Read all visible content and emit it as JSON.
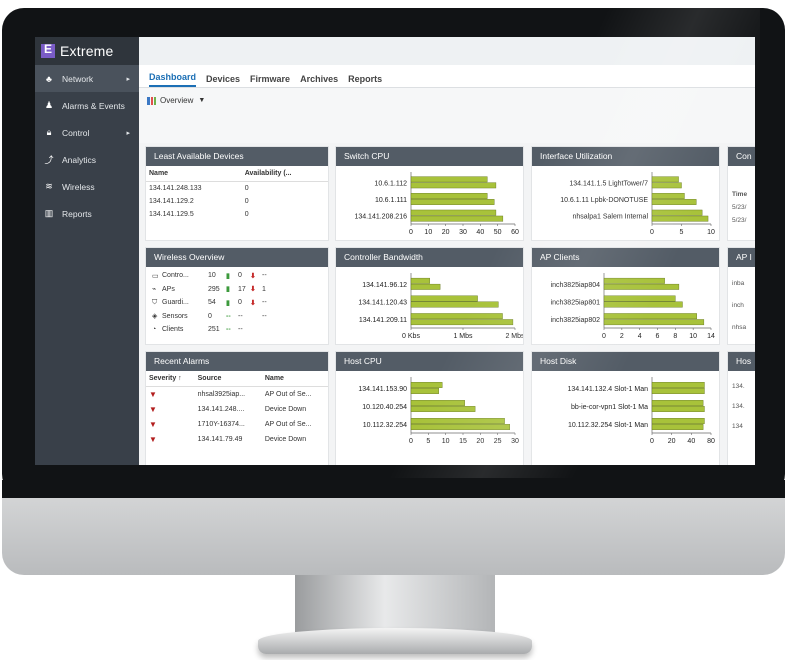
{
  "app": {
    "logo_text": "Extreme",
    "brand_color": "#7a5cc7"
  },
  "sidebar": {
    "items": [
      {
        "label": "Network",
        "icon": "network-icon",
        "glyph": "♣",
        "arrow": "▸"
      },
      {
        "label": "Alarms & Events",
        "icon": "bell-icon",
        "glyph": "♟",
        "arrow": ""
      },
      {
        "label": "Control",
        "icon": "lock-icon",
        "glyph": "🔒︎",
        "arrow": "▸"
      },
      {
        "label": "Analytics",
        "icon": "analytics-icon",
        "glyph": "⤴",
        "arrow": ""
      },
      {
        "label": "Wireless",
        "icon": "wifi-icon",
        "glyph": "≋",
        "arrow": ""
      },
      {
        "label": "Reports",
        "icon": "reports-icon",
        "glyph": "▥",
        "arrow": ""
      }
    ]
  },
  "tabs": [
    "Dashboard",
    "Devices",
    "Firmware",
    "Archives",
    "Reports"
  ],
  "overview_label": "Overview",
  "widgets": {
    "least_available": {
      "title": "Least Available Devices",
      "columns": [
        "Name",
        "Availability (..."
      ],
      "rows": [
        [
          "134.141.248.133",
          "0"
        ],
        [
          "134.141.129.2",
          "0"
        ],
        [
          "134.141.129.5",
          "0"
        ]
      ]
    },
    "wireless_overview": {
      "title": "Wireless Overview",
      "rows": [
        {
          "label": "Contro...",
          "count": "10",
          "up": "▮",
          "down": "0",
          "down_arrow": "⬇",
          "extra": "--",
          "glyph": "▭"
        },
        {
          "label": "APs",
          "count": "295",
          "up": "▮",
          "down": "17",
          "down_arrow": "⬇",
          "extra": "1",
          "glyph": "⌁"
        },
        {
          "label": "Guardi...",
          "count": "54",
          "up": "▮",
          "down": "0",
          "down_arrow": "⬇",
          "extra": "--",
          "glyph": "⛉"
        },
        {
          "label": "Sensors",
          "count": "0",
          "up": "--",
          "down": "--",
          "down_arrow": "",
          "extra": "--",
          "glyph": "◈"
        },
        {
          "label": "Clients",
          "count": "251",
          "up": "--",
          "down": "--",
          "down_arrow": "",
          "extra": "",
          "glyph": "◔"
        }
      ]
    },
    "recent_alarms": {
      "title": "Recent Alarms",
      "columns": [
        "Severity ↑",
        "Source",
        "Name"
      ],
      "rows": [
        [
          "▼",
          "nhsal3925iap...",
          "AP Out of Se..."
        ],
        [
          "▼",
          "134.141.248....",
          "Device Down"
        ],
        [
          "▼",
          "1710Y-16374...",
          "AP Out of Se..."
        ],
        [
          "▼",
          "134.141.79.49",
          "Device Down"
        ]
      ]
    },
    "right_edge": [
      {
        "title": "Con",
        "lines": [
          "Time",
          "5/23/",
          "5/23/"
        ]
      },
      {
        "title": "AP I",
        "lines": [
          "inba",
          "inch",
          "nhsa"
        ]
      },
      {
        "title": "Hos",
        "lines": [
          "134.",
          "134.",
          "134"
        ]
      }
    ]
  },
  "chart_data": [
    {
      "id": "switch_cpu",
      "type": "bar",
      "title": "Switch CPU",
      "orientation": "horizontal",
      "categories": [
        "10.6.1.112",
        "10.6.1.111",
        "134.141.208.216"
      ],
      "bars_per_category": 2,
      "values": [
        [
          44,
          49
        ],
        [
          44,
          48
        ],
        [
          49,
          53
        ]
      ],
      "ticks": [
        "0",
        "10",
        "20",
        "30",
        "40",
        "50",
        "60"
      ],
      "xlim": [
        0,
        60
      ]
    },
    {
      "id": "interface_util",
      "type": "bar",
      "title": "Interface Utilization",
      "orientation": "horizontal",
      "categories": [
        "134.141.1.5 LightTower/7",
        "10.6.1.11 Lpbk-DONOTUSE",
        "nhsalpa1 Salem Internal"
      ],
      "values": [
        [
          4.5,
          5
        ],
        [
          5.5,
          7.5
        ],
        [
          8.5,
          9.5
        ]
      ],
      "ticks": [
        "0",
        "5",
        "10"
      ],
      "xlim": [
        0,
        10
      ]
    },
    {
      "id": "controller_bw",
      "type": "bar",
      "title": "Controller Bandwidth",
      "orientation": "horizontal",
      "categories": [
        "134.141.96.12",
        "134.141.120.43",
        "134.141.209.11"
      ],
      "values": [
        [
          0.45,
          0.7
        ],
        [
          1.6,
          2.1
        ],
        [
          2.2,
          2.45
        ]
      ],
      "ticks": [
        "0 Kbs",
        "1 Mbs",
        "2 Mbs"
      ],
      "xlim": [
        0,
        2.5
      ]
    },
    {
      "id": "ap_clients",
      "type": "bar",
      "title": "AP Clients",
      "orientation": "horizontal",
      "categories": [
        "inch3825iap804",
        "inch3825iap801",
        "inch3825iap802"
      ],
      "values": [
        [
          8.5,
          10.5
        ],
        [
          10,
          11
        ],
        [
          13,
          14
        ]
      ],
      "ticks": [
        "0",
        "2",
        "4",
        "6",
        "8",
        "10",
        "14"
      ],
      "xlim": [
        0,
        15
      ]
    },
    {
      "id": "host_cpu",
      "type": "bar",
      "title": "Host CPU",
      "orientation": "horizontal",
      "categories": [
        "134.141.153.90",
        "10.120.40.254",
        "10.112.32.254"
      ],
      "values": [
        [
          9,
          8
        ],
        [
          15.5,
          18.5
        ],
        [
          27,
          28.5
        ]
      ],
      "ticks": [
        "0",
        "5",
        "10",
        "15",
        "20",
        "25",
        "30"
      ],
      "xlim": [
        0,
        30
      ]
    },
    {
      "id": "host_disk",
      "type": "bar",
      "title": "Host Disk",
      "orientation": "horizontal",
      "categories": [
        "134.141.132.4 Slot-1 Man",
        "bb-ie-cor-vpn1 Slot-1 Ma",
        "10.112.32.254 Slot-1 Man"
      ],
      "values": [
        [
          80,
          80
        ],
        [
          78,
          80
        ],
        [
          80,
          78
        ]
      ],
      "ticks": [
        "0",
        "20",
        "40",
        "80"
      ],
      "xlim": [
        0,
        90
      ]
    }
  ],
  "colors": {
    "bar": "#a8c23a",
    "bar_edge": "#5e7018",
    "header": "#535c66",
    "sidebar": "#394049",
    "accent": "#1b6fb5"
  }
}
